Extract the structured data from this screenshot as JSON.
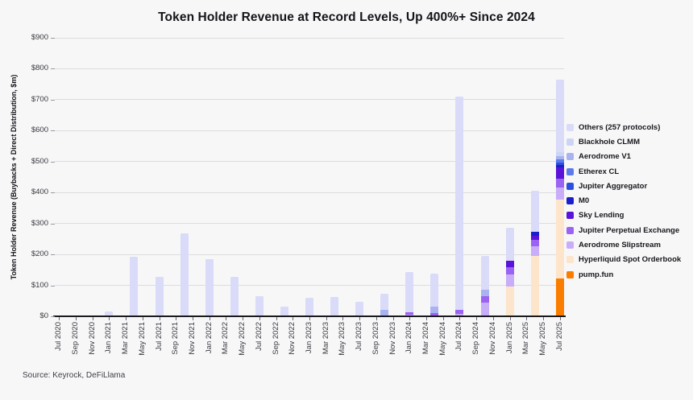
{
  "title": "Token Holder Revenue at Record Levels, Up 400%+ Since 2024",
  "source": "Source: Keyrock, DeFiLlama",
  "y_axis": {
    "title": "Token Holder Revenue (Buybacks + Direct Distribution, $m)",
    "ticks": [
      "$0",
      "$100",
      "$200",
      "$300",
      "$400",
      "$500",
      "$600",
      "$700",
      "$800",
      "$900"
    ],
    "max": 900
  },
  "x_axis": {
    "ticks": [
      "Jul 2020",
      "Sep 2020",
      "Nov 2020",
      "Jan 2021",
      "Mar 2021",
      "May 2021",
      "Jul 2021",
      "Sep 2021",
      "Nov 2021",
      "Jan 2022",
      "Mar 2022",
      "May 2022",
      "Jul 2022",
      "Sep 2022",
      "Nov 2022",
      "Jan 2023",
      "Mar 2023",
      "May 2023",
      "Jul 2023",
      "Sep 2023",
      "Nov 2023",
      "Jan 2024",
      "Mar 2024",
      "May 2024",
      "Jul 2024",
      "Sep 2024",
      "Nov 2024",
      "Jan 2025",
      "Mar 2025",
      "May 2025",
      "Jul 2025"
    ]
  },
  "colors": {
    "background": "#f7f7f8",
    "grid": "#dcdcdf",
    "axis_line": "#1a1a1e",
    "tick_text": "#3a3a40",
    "title_text": "#141419"
  },
  "chart_data": {
    "type": "bar",
    "stacked": true,
    "title": "Token Holder Revenue at Record Levels, Up 400%+ Since 2024",
    "ylabel": "Token Holder Revenue (Buybacks + Direct Distribution, $m)",
    "ylim": [
      0,
      900
    ],
    "grid": true,
    "legend_position": "right",
    "categories": [
      "Jan 2021",
      "Apr 2021",
      "Jul 2021",
      "Oct 2021",
      "Jan 2022",
      "Apr 2022",
      "Jul 2022",
      "Oct 2022",
      "Jan 2023",
      "Apr 2023",
      "Jul 2023",
      "Oct 2023",
      "Jan 2024",
      "Apr 2024",
      "Jul 2024",
      "Oct 2024",
      "Jan 2025",
      "Apr 2025",
      "Jul 2025"
    ],
    "bar_months_from_axis_start": [
      6,
      9,
      12,
      15,
      18,
      21,
      24,
      27,
      30,
      33,
      36,
      39,
      42,
      45,
      48,
      51,
      54,
      57,
      60
    ],
    "axis_months_total": 61,
    "series": [
      {
        "name": "pump.fun",
        "color": "#fb7d00",
        "values": [
          0,
          0,
          0,
          0,
          0,
          0,
          0,
          0,
          0,
          0,
          0,
          0,
          0,
          0,
          0,
          0,
          0,
          0,
          121
        ]
      },
      {
        "name": "Hyperliquid Spot Orderbook",
        "color": "#fce5cb",
        "values": [
          0,
          0,
          0,
          0,
          0,
          0,
          0,
          0,
          0,
          0,
          0,
          0,
          0,
          0,
          0,
          0,
          95,
          196,
          256
        ]
      },
      {
        "name": "Aerodrome Slipstream",
        "color": "#c8adf8",
        "values": [
          0,
          0,
          0,
          0,
          0,
          0,
          0,
          0,
          0,
          0,
          0,
          0,
          4,
          0,
          8,
          44,
          40,
          30,
          39
        ]
      },
      {
        "name": "Jupiter Perpetual Exchange",
        "color": "#9a63f2",
        "values": [
          0,
          0,
          0,
          0,
          0,
          0,
          0,
          0,
          0,
          0,
          0,
          0,
          9,
          11,
          14,
          22,
          25,
          20,
          30
        ]
      },
      {
        "name": "Sky Lending",
        "color": "#5a13d8",
        "values": [
          0,
          0,
          0,
          0,
          0,
          0,
          0,
          0,
          0,
          0,
          0,
          0,
          0,
          0,
          0,
          0,
          20,
          15,
          35
        ]
      },
      {
        "name": "M0",
        "color": "#1b1fcb",
        "values": [
          0,
          0,
          0,
          0,
          0,
          0,
          0,
          0,
          0,
          0,
          0,
          0,
          0,
          0,
          0,
          0,
          0,
          13,
          9
        ]
      },
      {
        "name": "Jupiter Aggregator",
        "color": "#2d4fe0",
        "values": [
          0,
          0,
          0,
          0,
          0,
          0,
          0,
          0,
          0,
          0,
          0,
          0,
          0,
          0,
          0,
          0,
          0,
          0,
          8
        ]
      },
      {
        "name": "Etherex CL",
        "color": "#5c7cee",
        "values": [
          0,
          0,
          0,
          0,
          0,
          0,
          0,
          0,
          0,
          0,
          0,
          0,
          0,
          0,
          0,
          0,
          0,
          0,
          10
        ]
      },
      {
        "name": "Aerodrome V1",
        "color": "#a8b3f0",
        "values": [
          0,
          0,
          0,
          0,
          0,
          0,
          0,
          0,
          0,
          0,
          0,
          20,
          0,
          20,
          0,
          20,
          0,
          0,
          9
        ]
      },
      {
        "name": "Blackhole CLMM",
        "color": "#cdd5f6",
        "values": [
          0,
          0,
          0,
          0,
          0,
          0,
          0,
          0,
          0,
          0,
          0,
          0,
          0,
          0,
          0,
          0,
          0,
          0,
          13
        ]
      },
      {
        "name": "Others (257 protocols)",
        "color": "#d9dbf8",
        "values": [
          15,
          193,
          128,
          268,
          186,
          128,
          65,
          32,
          60,
          62,
          47,
          53,
          130,
          107,
          688,
          108,
          105,
          132,
          234
        ]
      }
    ]
  }
}
